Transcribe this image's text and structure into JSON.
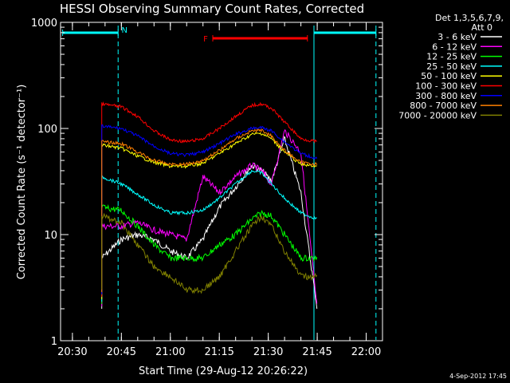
{
  "chart_data": {
    "type": "line",
    "title": "HESSI Observing Summary Count Rates, Corrected",
    "xlabel": "Start Time (29-Aug-12 20:26:22)",
    "ylabel": "Corrected Count Rate (s⁻¹ detector⁻¹)",
    "yscale": "log",
    "ylim": [
      1,
      1000
    ],
    "xlim": [
      "20:26:22",
      "22:05:00"
    ],
    "x_ticks": [
      "20:30",
      "20:45",
      "21:00",
      "21:15",
      "21:30",
      "21:45",
      "22:00"
    ],
    "y_ticks": [
      "1",
      "10",
      "100",
      "1000"
    ],
    "grid": false,
    "legend_position": "top-right",
    "legend_header": [
      "Det 1,3,5,6,7,9,",
      "Att 0"
    ],
    "footer_date": "4-Sep-2012 17:45",
    "annotations": {
      "N": {
        "label": "N",
        "color": "#00ffff",
        "bars": [
          [
            "20:27",
            "20:44"
          ],
          [
            "21:44",
            "22:03"
          ]
        ]
      },
      "F": {
        "label": "F",
        "color": "#ff0000",
        "bars": [
          [
            "21:13",
            "21:42"
          ]
        ]
      }
    },
    "vertical_lines": [
      {
        "x": "20:44",
        "color": "#00ffff",
        "style": "dashed"
      },
      {
        "x": "21:44",
        "color": "#00ffff",
        "style": "solid"
      },
      {
        "x": "22:03",
        "color": "#00ffff",
        "style": "dashed"
      }
    ],
    "x": [
      "20:39",
      "20:45",
      "20:50",
      "20:55",
      "21:00",
      "21:05",
      "21:10",
      "21:15",
      "21:20",
      "21:25",
      "21:28",
      "21:31",
      "21:35",
      "21:40",
      "21:45"
    ],
    "series": [
      {
        "name": "3 - 6 keV",
        "color": "#ffffff",
        "values": [
          6,
          9,
          10,
          9,
          7,
          6,
          9,
          18,
          28,
          45,
          40,
          32,
          80,
          25,
          2
        ]
      },
      {
        "name": "6 - 12 keV",
        "color": "#ff00ff",
        "values": [
          12,
          12,
          13,
          11,
          10,
          9,
          35,
          25,
          35,
          45,
          40,
          30,
          95,
          60,
          2
        ]
      },
      {
        "name": "12 - 25 keV",
        "color": "#00ff00",
        "values": [
          18,
          17,
          12,
          8,
          6,
          6,
          6,
          8,
          10,
          14,
          16,
          15,
          10,
          6,
          6
        ]
      },
      {
        "name": "25 - 50 keV",
        "color": "#00ffff",
        "values": [
          35,
          30,
          24,
          19,
          16,
          16,
          17,
          22,
          30,
          40,
          38,
          30,
          22,
          16,
          14
        ]
      },
      {
        "name": "50 - 100 keV",
        "color": "#ffff00",
        "values": [
          70,
          65,
          55,
          48,
          44,
          44,
          47,
          58,
          72,
          88,
          90,
          80,
          60,
          46,
          44
        ]
      },
      {
        "name": "100 - 300 keV",
        "color": "#ff0000",
        "values": [
          170,
          160,
          130,
          95,
          78,
          75,
          80,
          100,
          130,
          165,
          170,
          155,
          115,
          80,
          75
        ]
      },
      {
        "name": "300 - 800 keV",
        "color": "#0000ff",
        "values": [
          105,
          100,
          85,
          68,
          58,
          56,
          60,
          72,
          88,
          100,
          102,
          95,
          75,
          58,
          52
        ]
      },
      {
        "name": "800 - 7000 keV",
        "color": "#ff8000",
        "values": [
          75,
          72,
          60,
          50,
          46,
          46,
          50,
          62,
          80,
          95,
          96,
          85,
          62,
          48,
          46
        ]
      },
      {
        "name": "7000 - 20000 keV",
        "color": "#808000",
        "values": [
          15,
          13,
          8,
          5,
          4,
          3,
          3,
          4,
          7,
          12,
          15,
          12,
          7,
          4,
          4
        ]
      }
    ]
  }
}
